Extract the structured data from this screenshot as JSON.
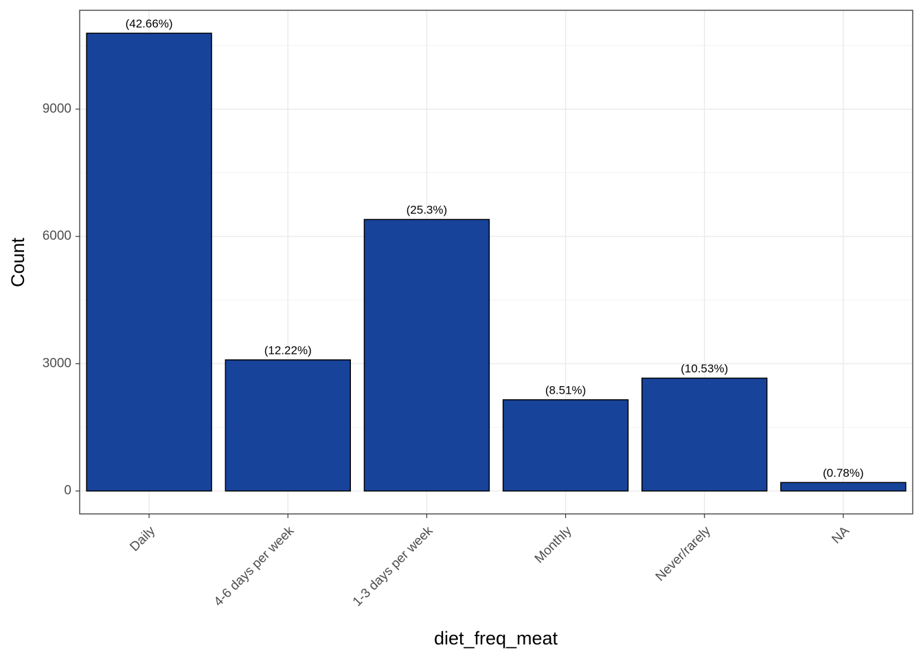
{
  "chart_data": {
    "type": "bar",
    "x_label": "diet_freq_meat",
    "y_label": "Count",
    "categories": [
      "Daily",
      "4-6 days per week",
      "1-3 days per week",
      "Monthly",
      "Never/rarely",
      "NA"
    ],
    "values": [
      10790,
      3090,
      6400,
      2150,
      2660,
      200
    ],
    "annotations": [
      "(42.66%)",
      "(12.22%)",
      "(25.3%)",
      "(8.51%)",
      "(10.53%)",
      "(0.78%)"
    ],
    "color": "#18439a",
    "ylim": [
      -540,
      11330
    ],
    "yticks": [
      0,
      3000,
      6000,
      9000
    ],
    "minor_yticks": [
      1500,
      4500,
      7500,
      10500
    ],
    "grid": true
  }
}
